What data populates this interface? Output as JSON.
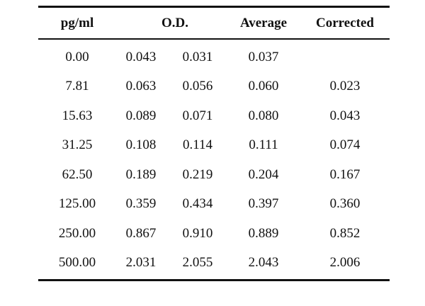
{
  "table": {
    "headers": {
      "pg": "pg/ml",
      "od": "O.D.",
      "average": "Average",
      "corrected": "Corrected"
    },
    "rows": [
      {
        "pg": "0.00",
        "od1": "0.043",
        "od2": "0.031",
        "average": "0.037",
        "corrected": ""
      },
      {
        "pg": "7.81",
        "od1": "0.063",
        "od2": "0.056",
        "average": "0.060",
        "corrected": "0.023"
      },
      {
        "pg": "15.63",
        "od1": "0.089",
        "od2": "0.071",
        "average": "0.080",
        "corrected": "0.043"
      },
      {
        "pg": "31.25",
        "od1": "0.108",
        "od2": "0.114",
        "average": "0.111",
        "corrected": "0.074"
      },
      {
        "pg": "62.50",
        "od1": "0.189",
        "od2": "0.219",
        "average": "0.204",
        "corrected": "0.167"
      },
      {
        "pg": "125.00",
        "od1": "0.359",
        "od2": "0.434",
        "average": "0.397",
        "corrected": "0.360"
      },
      {
        "pg": "250.00",
        "od1": "0.867",
        "od2": "0.910",
        "average": "0.889",
        "corrected": "0.852"
      },
      {
        "pg": "500.00",
        "od1": "2.031",
        "od2": "2.055",
        "average": "2.043",
        "corrected": "2.006"
      }
    ]
  }
}
